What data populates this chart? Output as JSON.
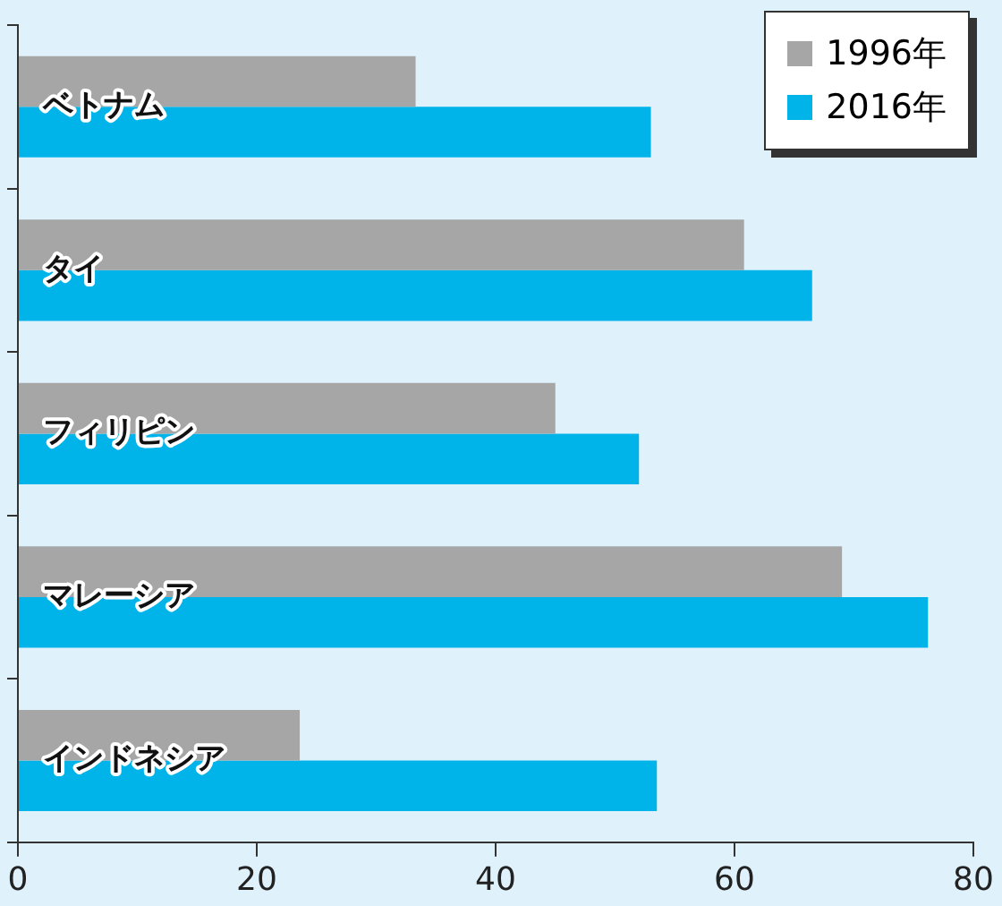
{
  "chart_data": {
    "type": "bar",
    "orientation": "horizontal",
    "categories": [
      "ベトナム",
      "タイ",
      "フィリピン",
      "マレーシア",
      "インドネシア"
    ],
    "series": [
      {
        "name": "1996年",
        "color": "#a6a6a6",
        "values": [
          33.3,
          60.8,
          45,
          69,
          23.6
        ]
      },
      {
        "name": "2016年",
        "color": "#00b4ea",
        "values": [
          53,
          66.5,
          52,
          76.2,
          53.5
        ]
      }
    ],
    "xlim": [
      0,
      80
    ],
    "xticks": [
      0,
      20,
      40,
      60,
      80
    ],
    "grid": false,
    "legend": "top right"
  }
}
